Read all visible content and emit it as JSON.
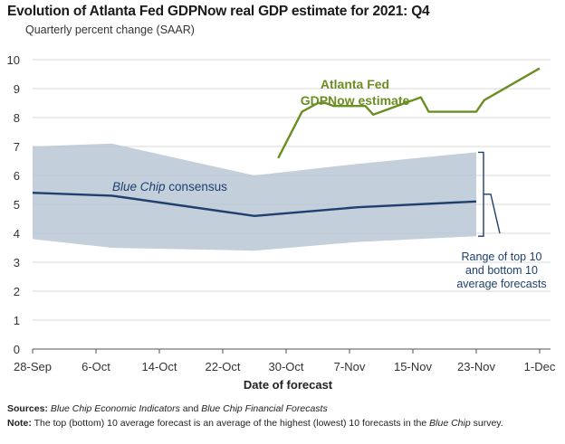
{
  "title": "Evolution of Atlanta Fed GDPNow real GDP estimate for 2021: Q4",
  "subtitle": "Quarterly percent change (SAAR)",
  "chart_data": {
    "type": "line",
    "title": "Evolution of Atlanta Fed GDPNow real GDP estimate for 2021: Q4",
    "ylabel": "Quarterly percent change (SAAR)",
    "xlabel": "Date of forecast",
    "ylim": [
      0,
      10
    ],
    "yticks": [
      0,
      1,
      2,
      3,
      4,
      5,
      6,
      7,
      8,
      9,
      10
    ],
    "x_ticks": [
      "28-Sep",
      "6-Oct",
      "14-Oct",
      "22-Oct",
      "30-Oct",
      "7-Nov",
      "15-Nov",
      "23-Nov",
      "1-Dec"
    ],
    "x_tick_dates": [
      "2021-09-28",
      "2021-10-06",
      "2021-10-14",
      "2021-10-22",
      "2021-10-30",
      "2021-11-07",
      "2021-11-15",
      "2021-11-23",
      "2021-12-01"
    ],
    "grid": "horizontal",
    "series": [
      {
        "name": "Atlanta Fed GDPNow estimate",
        "label_lines": [
          "Atlanta Fed",
          "GDPNow estimate"
        ],
        "color": "#6b8e23",
        "x": [
          "2021-10-29",
          "2021-11-01",
          "2021-11-03",
          "2021-11-04",
          "2021-11-05",
          "2021-11-09",
          "2021-11-10",
          "2021-11-16",
          "2021-11-17",
          "2021-11-23",
          "2021-11-24",
          "2021-12-01"
        ],
        "y": [
          6.6,
          8.2,
          8.5,
          8.5,
          8.4,
          8.4,
          8.1,
          8.7,
          8.2,
          8.2,
          8.6,
          9.7
        ]
      },
      {
        "name": "Blue Chip consensus",
        "color": "#1f3f6e",
        "x": [
          "2021-09-28",
          "2021-10-08",
          "2021-10-26",
          "2021-11-08",
          "2021-11-23"
        ],
        "y": [
          5.4,
          5.3,
          4.6,
          4.9,
          5.1
        ]
      }
    ],
    "range_band": {
      "name": "Range of top 10 and bottom 10 average forecasts",
      "label_lines": [
        "Range of top 10",
        "and bottom 10",
        "average forecasts"
      ],
      "color": "#b9c7d4",
      "x": [
        "2021-09-28",
        "2021-10-08",
        "2021-10-26",
        "2021-11-08",
        "2021-11-23"
      ],
      "upper": [
        7.0,
        7.1,
        6.0,
        6.4,
        6.8
      ],
      "lower": [
        3.8,
        3.5,
        3.4,
        3.7,
        3.9
      ]
    },
    "annotations": {
      "blue_chip_label_prefix": "Blue Chip",
      "blue_chip_label_suffix": " consensus"
    }
  },
  "footer": {
    "sources_label": "Sources:",
    "sources_text_1": "Blue Chip Economic Indicators",
    "sources_and": " and ",
    "sources_text_2": "Blue Chip Financial Forecasts",
    "note_label": "Note:",
    "note_text_1": " The top (bottom) 10 average forecast is an average of the highest (lowest) 10 forecasts in the ",
    "note_italic": "Blue Chip",
    "note_text_2": " survey."
  }
}
